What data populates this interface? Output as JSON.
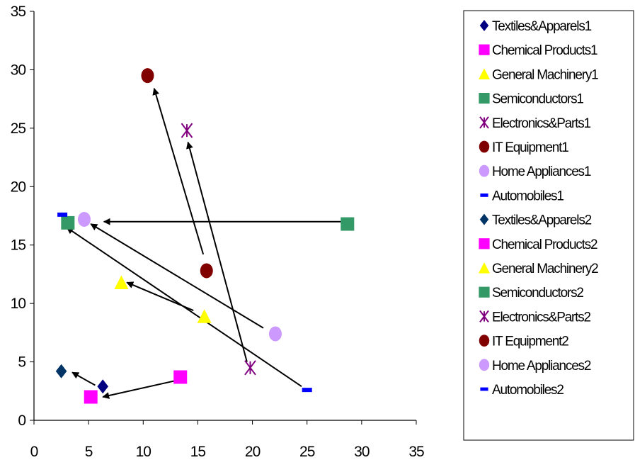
{
  "chart_data": {
    "type": "scatter",
    "title": "",
    "xlabel": "",
    "ylabel": "",
    "xlim": [
      0,
      35
    ],
    "ylim": [
      0,
      35
    ],
    "x_ticks": [
      "0",
      "5",
      "10",
      "15",
      "20",
      "25",
      "30",
      "35"
    ],
    "y_ticks": [
      "0",
      "5",
      "10",
      "15",
      "20",
      "25",
      "30",
      "35"
    ],
    "grid": false,
    "legend_position": "right",
    "series": [
      {
        "name": "Textiles&Apparels1",
        "marker": "diamond",
        "color": "#000080",
        "x": 6.3,
        "y": 2.9
      },
      {
        "name": "Chemical Products1",
        "marker": "square",
        "color": "#FF00FF",
        "x": 5.2,
        "y": 2.0
      },
      {
        "name": "General Machinery1",
        "marker": "triangle",
        "color": "#FFFF00",
        "x": 15.6,
        "y": 8.9
      },
      {
        "name": "Semiconductors1",
        "marker": "square",
        "color": "#339966",
        "x": 28.7,
        "y": 16.8
      },
      {
        "name": "Electronics&Parts1",
        "marker": "asterisk",
        "color": "#800080",
        "x": 19.8,
        "y": 4.5
      },
      {
        "name": "IT Equipment1",
        "marker": "circle",
        "color": "#800000",
        "x": 15.8,
        "y": 12.8
      },
      {
        "name": "Home Appliances1",
        "marker": "circle",
        "color": "#CC99FF",
        "x": 22.1,
        "y": 7.4
      },
      {
        "name": "Automobiles1",
        "marker": "dash",
        "color": "#0000FF",
        "x": 25.0,
        "y": 2.6
      },
      {
        "name": "Textiles&Apparels2",
        "marker": "diamond",
        "color": "#003366",
        "x": 2.5,
        "y": 4.2
      },
      {
        "name": "Chemical Products2",
        "marker": "square",
        "color": "#FF00FF",
        "x": 13.4,
        "y": 3.7
      },
      {
        "name": "General Machinery2",
        "marker": "triangle",
        "color": "#FFFF00",
        "x": 8.0,
        "y": 11.8
      },
      {
        "name": "Semiconductors2",
        "marker": "square",
        "color": "#339966",
        "x": 3.1,
        "y": 16.9
      },
      {
        "name": "Electronics&Parts2",
        "marker": "asterisk",
        "color": "#800080",
        "x": 14.0,
        "y": 24.8
      },
      {
        "name": "IT Equipment2",
        "marker": "circle",
        "color": "#800000",
        "x": 10.4,
        "y": 29.5
      },
      {
        "name": "Home Appliances2",
        "marker": "circle",
        "color": "#CC99FF",
        "x": 4.6,
        "y": 17.2
      },
      {
        "name": "Automobiles2",
        "marker": "dash",
        "color": "#0000FF",
        "x": 2.6,
        "y": 17.6
      }
    ],
    "arrows": [
      {
        "from": [
          13.0,
          3.4
        ],
        "to": [
          6.3,
          2.0
        ]
      },
      {
        "from": [
          5.6,
          3.0
        ],
        "to": [
          3.5,
          4.1
        ]
      },
      {
        "from": [
          14.6,
          9.4
        ],
        "to": [
          8.5,
          11.8
        ]
      },
      {
        "from": [
          28.7,
          17.0
        ],
        "to": [
          6.4,
          17.0
        ]
      },
      {
        "from": [
          19.5,
          5.0
        ],
        "to": [
          14.1,
          23.8
        ]
      },
      {
        "from": [
          15.5,
          14.2
        ],
        "to": [
          11.0,
          28.4
        ]
      },
      {
        "from": [
          21.0,
          7.9
        ],
        "to": [
          5.2,
          16.8
        ]
      },
      {
        "from": [
          24.5,
          2.9
        ],
        "to": [
          3.0,
          16.5
        ]
      }
    ]
  }
}
